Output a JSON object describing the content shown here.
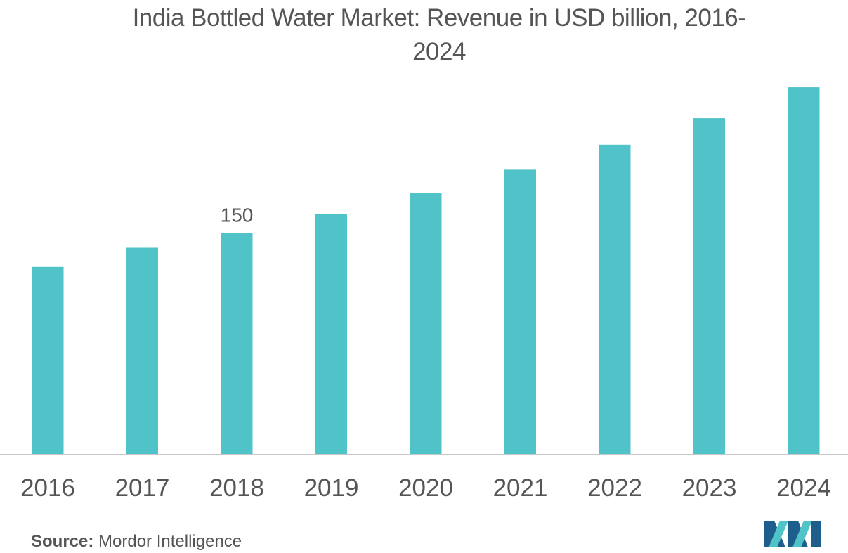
{
  "chart_data": {
    "type": "bar",
    "title_line1": "India Bottled Water Market: Revenue in USD billion, 2016-",
    "title_line2": "2024",
    "categories": [
      "2016",
      "2017",
      "2018",
      "2019",
      "2020",
      "2021",
      "2022",
      "2023",
      "2024"
    ],
    "values": [
      127,
      140,
      150,
      163,
      177,
      193,
      210,
      228,
      249
    ],
    "data_labels": [
      {
        "category": "2018",
        "text": "150"
      }
    ],
    "ylim": [
      0,
      260
    ],
    "xlabel": "",
    "ylabel": "",
    "grid": false,
    "bar_color": "#4fc3c8",
    "axis_color": "#c8c8c8"
  },
  "source": {
    "label": "Source:",
    "text": "Mordor Intelligence"
  },
  "logo": {
    "icon": "mordor-intelligence-logo-icon",
    "colors": [
      "#1e5e8c",
      "#4fc3c8"
    ]
  }
}
